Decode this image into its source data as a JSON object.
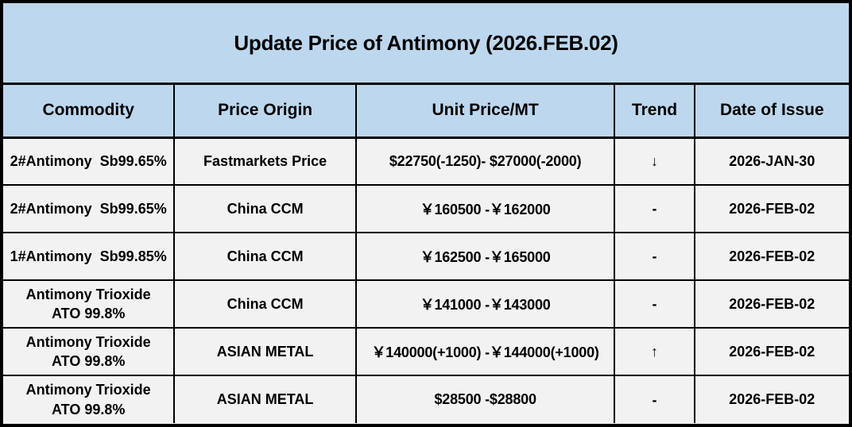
{
  "title": "Update Price of Antimony (2026.FEB.02)",
  "colors": {
    "header_bg": "#BDD7EE",
    "row_bg": "#F2F2F2",
    "border": "#000000",
    "text": "#000000"
  },
  "table": {
    "columns": [
      "Commodity",
      "Price Origin",
      "Unit Price/MT",
      "Trend",
      "Date of Issue"
    ],
    "rows": [
      {
        "commodity": "2#Antimony  Sb99.65%",
        "origin": "Fastmarkets Price",
        "price": "$22750(-1250)- $27000(-2000)",
        "trend": "↓",
        "trend_meaning": "down",
        "date": "2026-JAN-30"
      },
      {
        "commodity": "2#Antimony  Sb99.65%",
        "origin": "China CCM",
        "price": "￥160500 -￥162000",
        "trend": "-",
        "trend_meaning": "unchanged",
        "date": "2026-FEB-02"
      },
      {
        "commodity": "1#Antimony  Sb99.85%",
        "origin": "China CCM",
        "price": "￥162500 -￥165000",
        "trend": "-",
        "trend_meaning": "unchanged",
        "date": "2026-FEB-02"
      },
      {
        "commodity": "Antimony Trioxide\nATO 99.8%",
        "origin": "China CCM",
        "price": "￥141000 -￥143000",
        "trend": "-",
        "trend_meaning": "unchanged",
        "date": "2026-FEB-02"
      },
      {
        "commodity": "Antimony Trioxide\nATO 99.8%",
        "origin": "ASIAN METAL",
        "price": "￥140000(+1000) -￥144000(+1000)",
        "trend": "↑",
        "trend_meaning": "up",
        "date": "2026-FEB-02"
      },
      {
        "commodity": "Antimony Trioxide\nATO 99.8%",
        "origin": "ASIAN METAL",
        "price": "$28500 -$28800",
        "trend": "-",
        "trend_meaning": "unchanged",
        "date": "2026-FEB-02"
      }
    ]
  }
}
